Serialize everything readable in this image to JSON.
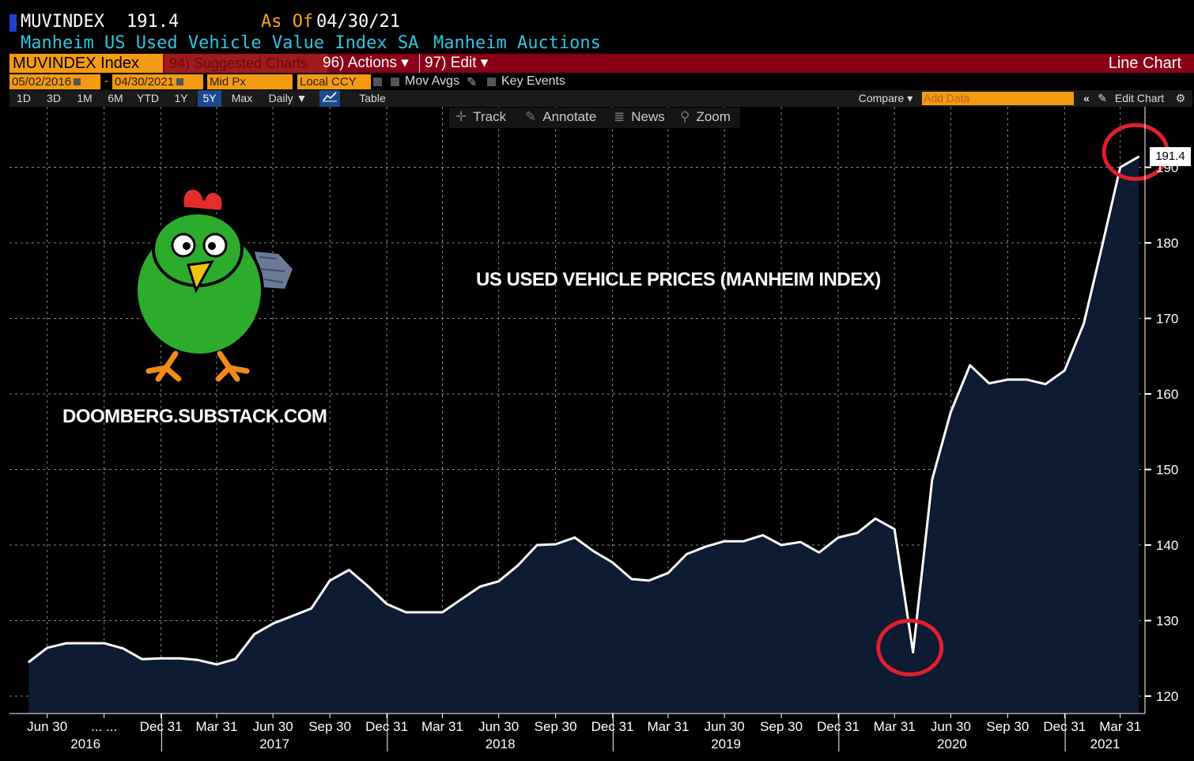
{
  "header": {
    "ticker": "MUVINDEX",
    "last_price": "191.4",
    "as_of_label": "As Of",
    "as_of_date": "04/30/21",
    "index_name": "Manheim US Used Vehicle Value Index SA",
    "source": "Manheim Auctions"
  },
  "menu": {
    "security": "MUVINDEX Index",
    "suggested": "94) Suggested Charts",
    "actions": "96) Actions ▾",
    "edit": "97) Edit ▾",
    "chart_type": "Line Chart"
  },
  "controls": {
    "start_date": "05/02/2016",
    "dash": "-",
    "end_date": "04/30/2021",
    "price_field": "Mid Px",
    "currency": "Local CCY",
    "mov_avgs": "Mov Avgs",
    "key_events": "Key Events"
  },
  "periods": [
    "1D",
    "3D",
    "1M",
    "6M",
    "YTD",
    "1Y",
    "5Y",
    "Max"
  ],
  "selected_period": "5Y",
  "frequency": "Daily ▼",
  "table_label": "Table",
  "compare_label": "Compare ▾",
  "add_data_placeholder": "Add Data",
  "edit_chart_label": "Edit Chart",
  "tools": {
    "track": "Track",
    "annotate": "Annotate",
    "news": "News",
    "zoom": "Zoom"
  },
  "overlay": {
    "title": "US USED VEHICLE PRICES (MANHEIM INDEX)",
    "subtitle": "DOOMBERG.SUBSTACK.COM"
  },
  "colors": {
    "background": "#000000",
    "area_fill": "#0d1b33",
    "line": "#ffffff",
    "accent_orange": "#f49a11",
    "header_blue": "#2ec5e0",
    "menu_red": "#8a0016",
    "highlight_circle": "#e0202c"
  },
  "chart_data": {
    "type": "area",
    "title": "US USED VEHICLE PRICES (MANHEIM INDEX)",
    "ylim": [
      117,
      197
    ],
    "yticks": [
      120,
      130,
      140,
      150,
      160,
      170,
      180,
      190
    ],
    "grid": true,
    "last_value_label": "191.4",
    "x": [
      "2016-05-31",
      "2016-06-30",
      "2016-07-31",
      "2016-08-31",
      "2016-09-30",
      "2016-10-31",
      "2016-11-30",
      "2016-12-31",
      "2017-01-31",
      "2017-02-28",
      "2017-03-31",
      "2017-04-30",
      "2017-05-31",
      "2017-06-30",
      "2017-07-31",
      "2017-08-31",
      "2017-09-30",
      "2017-10-31",
      "2017-11-30",
      "2017-12-31",
      "2018-01-31",
      "2018-02-28",
      "2018-03-31",
      "2018-04-30",
      "2018-05-31",
      "2018-06-30",
      "2018-07-31",
      "2018-08-31",
      "2018-09-30",
      "2018-10-31",
      "2018-11-30",
      "2018-12-31",
      "2019-01-31",
      "2019-02-28",
      "2019-03-31",
      "2019-04-30",
      "2019-05-31",
      "2019-06-30",
      "2019-07-31",
      "2019-08-31",
      "2019-09-30",
      "2019-10-31",
      "2019-11-30",
      "2019-12-31",
      "2020-01-31",
      "2020-02-29",
      "2020-03-31",
      "2020-04-30",
      "2020-05-31",
      "2020-06-30",
      "2020-07-31",
      "2020-08-31",
      "2020-09-30",
      "2020-10-31",
      "2020-11-30",
      "2020-12-31",
      "2021-01-31",
      "2021-02-28",
      "2021-03-31",
      "2021-04-30"
    ],
    "values": [
      124.5,
      126.4,
      127.0,
      127.0,
      127.0,
      126.3,
      124.9,
      125.0,
      125.0,
      124.8,
      124.2,
      124.9,
      128.2,
      129.6,
      130.6,
      131.6,
      135.3,
      136.7,
      134.6,
      132.2,
      131.1,
      131.1,
      131.1,
      132.8,
      134.5,
      135.2,
      137.3,
      140.0,
      140.1,
      141.0,
      139.2,
      137.7,
      135.5,
      135.3,
      136.3,
      138.8,
      139.8,
      140.5,
      140.5,
      141.3,
      140.0,
      140.4,
      139.0,
      141.0,
      141.6,
      143.5,
      142.1,
      125.8,
      148.7,
      157.6,
      163.8,
      161.4,
      161.9,
      161.9,
      161.3,
      163.1,
      169.3,
      179.0,
      190.0,
      191.4
    ],
    "x_ticks": [
      {
        "date": "2016-06-30",
        "label": "Jun 30"
      },
      {
        "date": "2016-09-30",
        "label": "... ..."
      },
      {
        "date": "2016-12-31",
        "label": "Dec 31"
      },
      {
        "date": "2017-03-31",
        "label": "Mar 31"
      },
      {
        "date": "2017-06-30",
        "label": "Jun 30"
      },
      {
        "date": "2017-09-30",
        "label": "Sep 30"
      },
      {
        "date": "2017-12-31",
        "label": "Dec 31"
      },
      {
        "date": "2018-03-31",
        "label": "Mar 31"
      },
      {
        "date": "2018-06-30",
        "label": "Jun 30"
      },
      {
        "date": "2018-09-30",
        "label": "Sep 30"
      },
      {
        "date": "2018-12-31",
        "label": "Dec 31"
      },
      {
        "date": "2019-03-31",
        "label": "Mar 31"
      },
      {
        "date": "2019-06-30",
        "label": "Jun 30"
      },
      {
        "date": "2019-09-30",
        "label": "Sep 30"
      },
      {
        "date": "2019-12-31",
        "label": "Dec 31"
      },
      {
        "date": "2020-03-31",
        "label": "Mar 31"
      },
      {
        "date": "2020-06-30",
        "label": "Jun 30"
      },
      {
        "date": "2020-09-30",
        "label": "Sep 30"
      },
      {
        "date": "2020-12-31",
        "label": "Dec 31"
      },
      {
        "date": "2021-03-31",
        "label": "Mar 31"
      }
    ],
    "years": [
      "2016",
      "2017",
      "2018",
      "2019",
      "2020",
      "2021"
    ],
    "highlighted_points": [
      "2020-04-30",
      "2021-04-30"
    ]
  }
}
